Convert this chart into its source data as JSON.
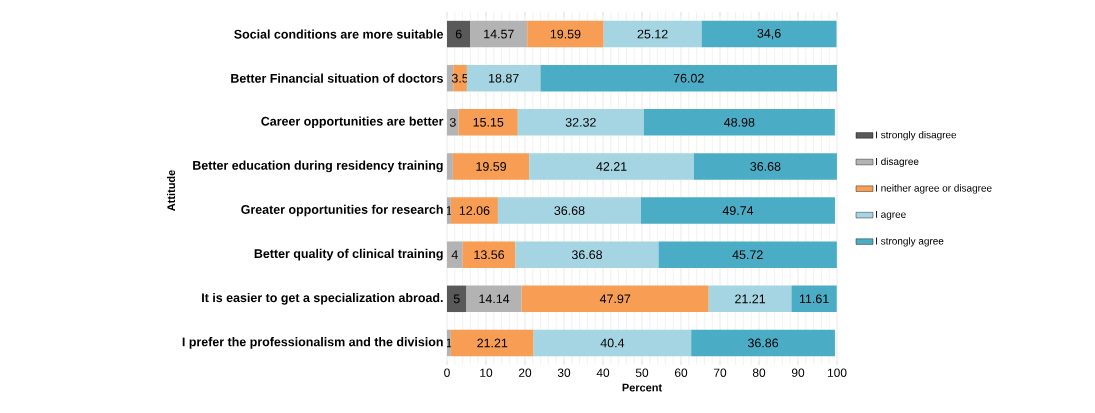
{
  "chart_data": {
    "type": "bar",
    "orientation": "horizontal",
    "stacked": true,
    "categories": [
      "Social conditions  are more suitable",
      "Better Financial situation of doctors",
      "Career opportunities are better",
      "Better education during residency training",
      "Greater opportunities for research",
      "Better quality of clinical training",
      "It is easier to get a specialization abroad.",
      "I prefer the professionalism and the division"
    ],
    "series": [
      {
        "name": "I strongly disagree",
        "color": "#595959",
        "values": [
          6,
          null,
          null,
          null,
          null,
          null,
          5,
          null
        ],
        "value_labels": [
          "6",
          null,
          null,
          null,
          null,
          null,
          "5",
          null
        ]
      },
      {
        "name": "I disagree",
        "color": "#b3b3b3",
        "values": [
          14.57,
          1.6,
          3,
          1.5,
          1,
          4,
          14.14,
          1
        ],
        "value_labels": [
          "14.57",
          null,
          "3",
          null,
          "1",
          "4",
          "14.14",
          "1"
        ]
      },
      {
        "name": "I neither agree or disagree",
        "color": "#f79e54",
        "values": [
          19.59,
          3.5,
          15.15,
          19.59,
          12.06,
          13.56,
          47.97,
          21.21
        ],
        "value_labels": [
          "19.59",
          "3.5",
          "15.15",
          "19.59",
          "12.06",
          "13.56",
          "47.97",
          "21.21"
        ]
      },
      {
        "name": "I agree",
        "color": "#a5d5e2",
        "values": [
          25.12,
          18.87,
          32.32,
          42.21,
          36.68,
          36.68,
          21.21,
          40.4
        ],
        "value_labels": [
          "25.12",
          "18.87",
          "32.32",
          "42.21",
          "36.68",
          "36.68",
          "21.21",
          "40.4"
        ]
      },
      {
        "name": "I strongly agree",
        "color": "#4bacc6",
        "values": [
          34.6,
          76.02,
          48.98,
          36.68,
          49.74,
          45.72,
          11.61,
          36.86
        ],
        "value_labels": [
          "34,6",
          "76.02",
          "48.98",
          "36.68",
          "49.74",
          "45.72",
          "11.61",
          "36.86"
        ]
      }
    ],
    "xlim": [
      0,
      100
    ],
    "xticks": [
      0,
      10,
      20,
      30,
      40,
      50,
      60,
      70,
      80,
      90,
      100
    ],
    "xlabel": "Percent",
    "ylabel": "Attitude",
    "grid": "x",
    "legend": "right"
  }
}
